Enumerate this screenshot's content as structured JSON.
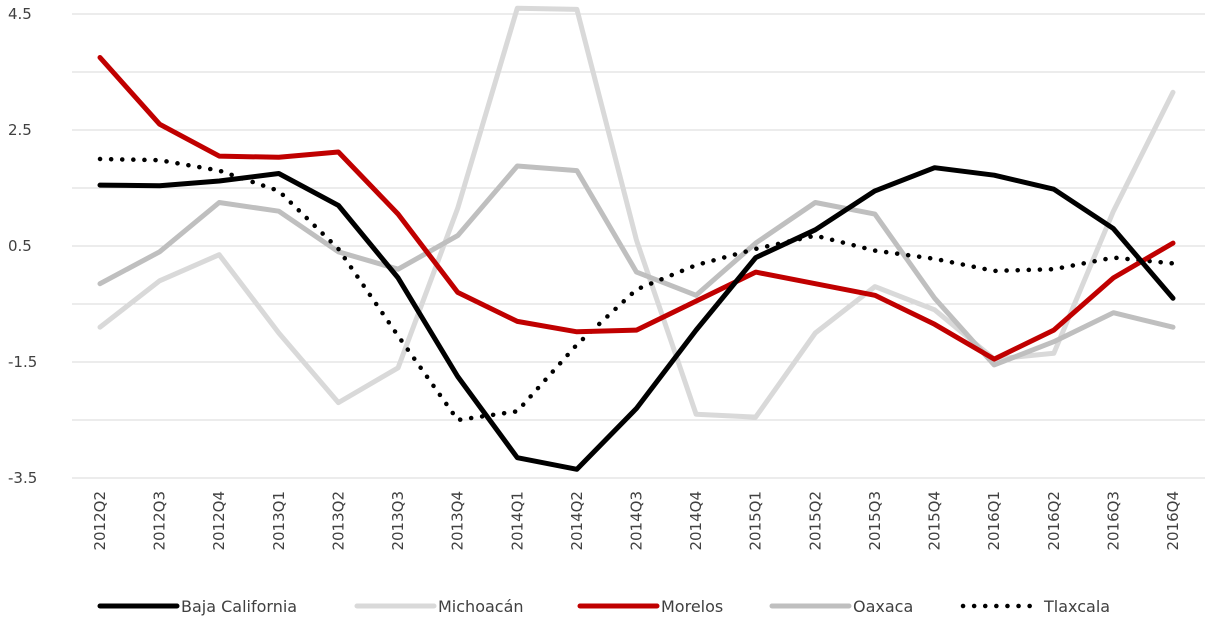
{
  "chart_data": {
    "type": "line",
    "title": "",
    "xlabel": "",
    "ylabel": "",
    "categories": [
      "2012Q2",
      "2012Q3",
      "2012Q4",
      "2013Q1",
      "2013Q2",
      "2013Q3",
      "2013Q4",
      "2014Q1",
      "2014Q2",
      "2014Q3",
      "2014Q4",
      "2015Q1",
      "2015Q2",
      "2015Q3",
      "2015Q4",
      "2016Q1",
      "2016Q2",
      "2016Q3",
      "2016Q4"
    ],
    "y_ticks": [
      "4.5",
      "2.5",
      "0.5",
      "-1.5",
      "-3.5"
    ],
    "ylim": [
      -3.5,
      4.5
    ],
    "grid": "horizontal",
    "legend_position": "bottom",
    "series": [
      {
        "name": "Baja California",
        "color": "#000000",
        "dash": "solid",
        "values": [
          1.55,
          1.54,
          1.62,
          1.75,
          1.2,
          -0.05,
          -1.75,
          -3.15,
          -3.35,
          -2.3,
          -0.95,
          0.3,
          0.78,
          1.45,
          1.85,
          1.72,
          1.48,
          0.8,
          -0.4
        ]
      },
      {
        "name": "Michoacán",
        "color": "#d9d9d9",
        "dash": "solid",
        "values": [
          -0.9,
          -0.1,
          0.35,
          -1.0,
          -2.2,
          -1.6,
          1.15,
          4.6,
          4.58,
          0.6,
          -2.4,
          -2.45,
          -1.0,
          -0.2,
          -0.6,
          -1.45,
          -1.35,
          1.1,
          3.15
        ]
      },
      {
        "name": "Morelos",
        "color": "#c00000",
        "dash": "solid",
        "values": [
          3.75,
          2.6,
          2.05,
          2.03,
          2.12,
          1.05,
          -0.3,
          -0.8,
          -0.98,
          -0.95,
          -0.45,
          0.05,
          -0.15,
          -0.35,
          -0.85,
          -1.45,
          -0.95,
          -0.05,
          0.55
        ]
      },
      {
        "name": "Oaxaca",
        "color": "#bfbfbf",
        "dash": "solid",
        "values": [
          -0.15,
          0.4,
          1.25,
          1.1,
          0.4,
          0.1,
          0.68,
          1.88,
          1.8,
          0.05,
          -0.35,
          0.55,
          1.25,
          1.05,
          -0.4,
          -1.55,
          -1.15,
          -0.65,
          -0.9
        ]
      },
      {
        "name": "Tlaxcala",
        "color": "#000000",
        "dash": "dotted",
        "values": [
          2.0,
          1.98,
          1.8,
          1.45,
          0.45,
          -1.05,
          -2.5,
          -2.35,
          -1.2,
          -0.25,
          0.17,
          0.45,
          0.68,
          0.42,
          0.28,
          0.07,
          0.1,
          0.3,
          0.2
        ]
      }
    ]
  }
}
